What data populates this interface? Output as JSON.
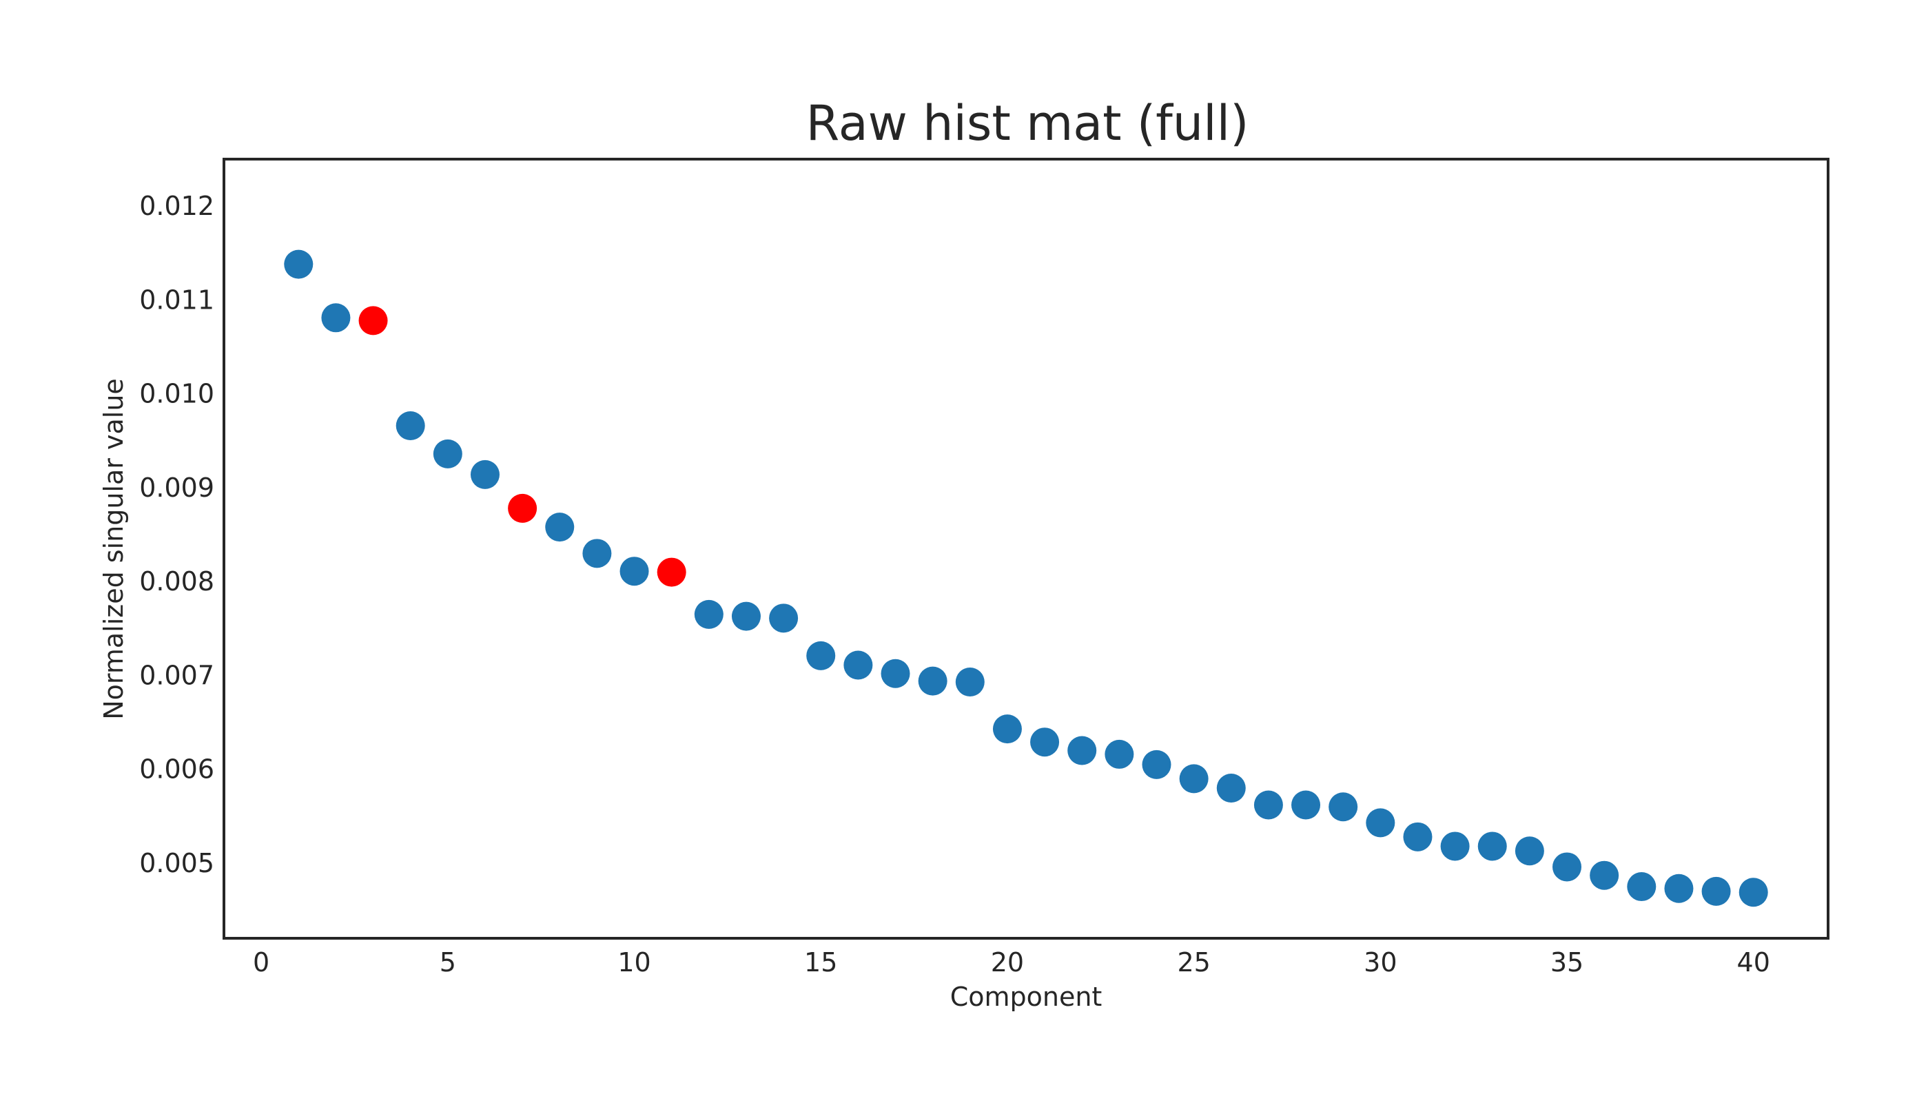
{
  "chart_data": {
    "type": "scatter",
    "title": "Raw hist mat (full)",
    "xlabel": "Component",
    "ylabel": "Normalized singular value",
    "xlim": [
      -1,
      42
    ],
    "ylim": [
      0.0042,
      0.0125
    ],
    "xticks": [
      0,
      5,
      10,
      15,
      20,
      25,
      30,
      35,
      40
    ],
    "xtick_labels": [
      "0",
      "5",
      "10",
      "15",
      "20",
      "25",
      "30",
      "35",
      "40"
    ],
    "yticks": [
      0.005,
      0.006,
      0.007,
      0.008,
      0.009,
      0.01,
      0.011,
      0.012
    ],
    "ytick_labels": [
      "0.005",
      "0.006",
      "0.007",
      "0.008",
      "0.009",
      "0.010",
      "0.011",
      "0.012"
    ],
    "grid": false,
    "colors": {
      "default": "#1f77b4",
      "highlight": "#ff0000",
      "frame": "#262626"
    },
    "series": [
      {
        "x": [
          1,
          2,
          3,
          4,
          5,
          6,
          7,
          8,
          9,
          10,
          11,
          12,
          13,
          14,
          15,
          16,
          17,
          18,
          19,
          20,
          21,
          22,
          23,
          24,
          25,
          26,
          27,
          28,
          29,
          30,
          31,
          32,
          33,
          34,
          35,
          36,
          37,
          38,
          39,
          40
        ],
        "y": [
          0.01138,
          0.01081,
          0.01078,
          0.00966,
          0.00936,
          0.00914,
          0.00878,
          0.00858,
          0.0083,
          0.00811,
          0.0081,
          0.00765,
          0.00763,
          0.00761,
          0.00721,
          0.00711,
          0.00702,
          0.00694,
          0.00693,
          0.00643,
          0.00629,
          0.0062,
          0.00616,
          0.00605,
          0.0059,
          0.0058,
          0.00562,
          0.00562,
          0.0056,
          0.00543,
          0.00528,
          0.00518,
          0.00518,
          0.00513,
          0.00496,
          0.00487,
          0.00475,
          0.00473,
          0.0047,
          0.00469
        ],
        "highlighted_x": [
          3,
          7,
          11
        ]
      }
    ]
  }
}
